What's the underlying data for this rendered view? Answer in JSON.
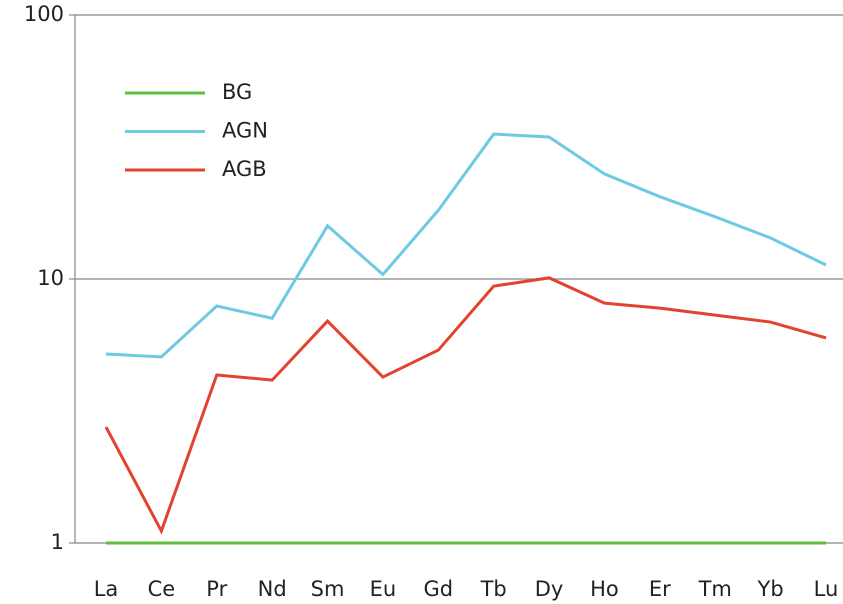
{
  "chart_data": {
    "type": "line",
    "categories": [
      "La",
      "Ce",
      "Pr",
      "Nd",
      "Sm",
      "Eu",
      "Gd",
      "Tb",
      "Dy",
      "Ho",
      "Er",
      "Tm",
      "Yb",
      "Lu"
    ],
    "series": [
      {
        "name": "BG",
        "color": "#5cbf3a",
        "values": [
          1,
          1,
          1,
          1,
          1,
          1,
          1,
          1,
          1,
          1,
          1,
          1,
          1,
          1
        ]
      },
      {
        "name": "AGN",
        "color": "#6ec9e4",
        "values": [
          5.2,
          5.07,
          7.9,
          7.1,
          15.9,
          10.4,
          18.2,
          35.4,
          34.5,
          25,
          20.5,
          17.2,
          14.3,
          11.3
        ]
      },
      {
        "name": "AGB",
        "color": "#e2432e",
        "values": [
          2.75,
          1.11,
          4.33,
          4.14,
          6.93,
          4.25,
          5.38,
          9.4,
          10.1,
          8.1,
          7.76,
          7.3,
          6.87,
          5.98
        ]
      }
    ],
    "ylim": [
      1,
      100
    ],
    "yticks": [
      1,
      10,
      100
    ],
    "log_y": true,
    "grid": true,
    "legend": "upper left"
  }
}
